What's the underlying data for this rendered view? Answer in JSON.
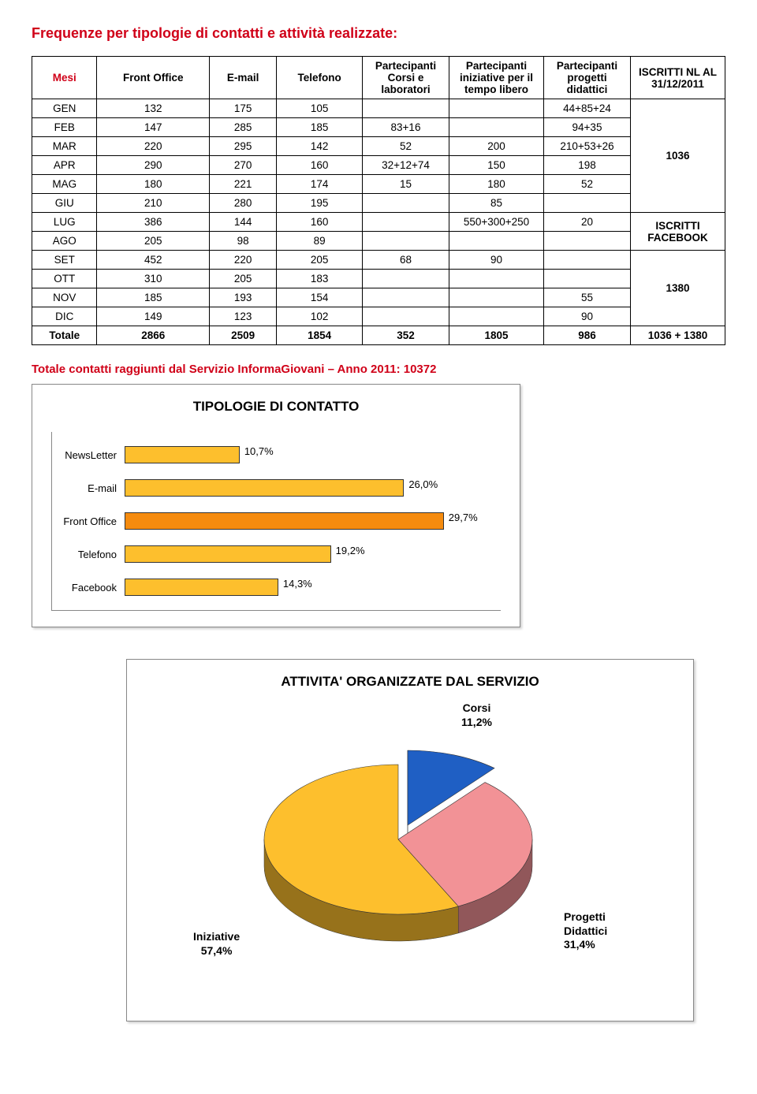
{
  "title": "Frequenze per tipologie di contatti e attività realizzate:",
  "table": {
    "headers": [
      "Mesi",
      "Front Office",
      "E-mail",
      "Telefono",
      "Partecipanti Corsi e laboratori",
      "Partecipanti iniziative per il tempo libero",
      "Partecipanti progetti didattici",
      "ISCRITTI NL AL 31/12/2011"
    ],
    "rows": [
      {
        "m": "GEN",
        "fo": "132",
        "em": "175",
        "tel": "105",
        "c": "",
        "i": "",
        "p": "44+85+24"
      },
      {
        "m": "FEB",
        "fo": "147",
        "em": "285",
        "tel": "185",
        "c": "83+16",
        "i": "",
        "p": "94+35"
      },
      {
        "m": "MAR",
        "fo": "220",
        "em": "295",
        "tel": "142",
        "c": "52",
        "i": "200",
        "p": "210+53+26"
      },
      {
        "m": "APR",
        "fo": "290",
        "em": "270",
        "tel": "160",
        "c": "32+12+74",
        "i": "150",
        "p": "198"
      },
      {
        "m": "MAG",
        "fo": "180",
        "em": "221",
        "tel": "174",
        "c": "15",
        "i": "180",
        "p": "52"
      },
      {
        "m": "GIU",
        "fo": "210",
        "em": "280",
        "tel": "195",
        "c": "",
        "i": "85",
        "p": ""
      },
      {
        "m": "LUG",
        "fo": "386",
        "em": "144",
        "tel": "160",
        "c": "",
        "i": "550+300+250",
        "p": "20"
      },
      {
        "m": "AGO",
        "fo": "205",
        "em": "98",
        "tel": "89",
        "c": "",
        "i": "",
        "p": ""
      },
      {
        "m": "SET",
        "fo": "452",
        "em": "220",
        "tel": "205",
        "c": "68",
        "i": "90",
        "p": ""
      },
      {
        "m": "OTT",
        "fo": "310",
        "em": "205",
        "tel": "183",
        "c": "",
        "i": "",
        "p": ""
      },
      {
        "m": "NOV",
        "fo": "185",
        "em": "193",
        "tel": "154",
        "c": "",
        "i": "",
        "p": "55"
      },
      {
        "m": "DIC",
        "fo": "149",
        "em": "123",
        "tel": "102",
        "c": "",
        "i": "",
        "p": "90"
      }
    ],
    "side": {
      "first": "1036",
      "second_a": "ISCRITTI",
      "second_b": "FACEBOOK",
      "third": "1380"
    },
    "total": {
      "label": "Totale",
      "fo": "2866",
      "em": "2509",
      "tel": "1854",
      "c": "352",
      "i": "1805",
      "p": "986",
      "last": "1036 + 1380"
    }
  },
  "sub": {
    "text": "Totale contatti raggiunti dal Servizio InformaGiovani – Anno 2011:",
    "num": "10372"
  },
  "barchart": {
    "title": "TIPOLOGIE DI CONTATTO",
    "max": 35,
    "bars": [
      {
        "label": "NewsLetter",
        "value": 10.7,
        "text": "10,7%",
        "color": "#fdbf2d"
      },
      {
        "label": "E-mail",
        "value": 26.0,
        "text": "26,0%",
        "color": "#fdbf2d"
      },
      {
        "label": "Front Office",
        "value": 29.7,
        "text": "29,7%",
        "color": "#f58b0e"
      },
      {
        "label": "Telefono",
        "value": 19.2,
        "text": "19,2%",
        "color": "#fdbf2d"
      },
      {
        "label": "Facebook",
        "value": 14.3,
        "text": "14,3%",
        "color": "#fdbf2d"
      }
    ]
  },
  "pie": {
    "title": "ATTIVITA' ORGANIZZATE DAL SERVIZIO",
    "slices": [
      {
        "label": "Corsi",
        "pct": "11,2%",
        "value": 11.2,
        "color": "#1f5fc4"
      },
      {
        "label": "Progetti Didattici",
        "pct": "31,4%",
        "value": 31.4,
        "color": "#f29296"
      },
      {
        "label": "Iniziative",
        "pct": "57,4%",
        "value": 57.4,
        "color": "#fdbf2d"
      }
    ]
  }
}
